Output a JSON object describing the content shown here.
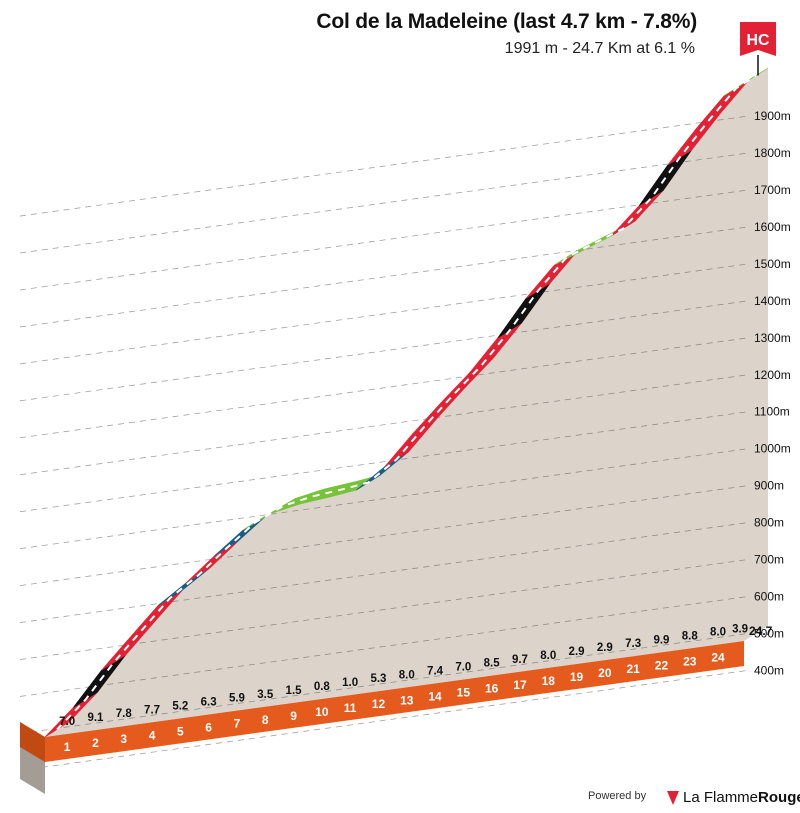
{
  "title": "Col de la Madeleine (last 4.7 km - 7.8%)",
  "subtitle": "1991 m - 24.7 Km at 6.1 %",
  "category_badge": "HC",
  "powered_by": "Powered by",
  "brand_name_light": "La Flamme",
  "brand_name_bold": "Rouge",
  "colors": {
    "ground": "#dcd3cb",
    "ground_side": "#a49d96",
    "base_orange": "#e55b1e",
    "badge_red": "#e22134",
    "grade_green": "#76c23a",
    "grade_blue": "#1b5d85",
    "grade_red": "#e22134",
    "grade_black": "#111111"
  },
  "chart_data": {
    "type": "area",
    "title": "Col de la Madeleine (last 4.7 km - 7.8%)",
    "subtitle": "1991 m - 24.7 Km at 6.1 %",
    "x_unit": "km",
    "y_unit": "m",
    "km_labels": [
      "1",
      "2",
      "3",
      "4",
      "5",
      "6",
      "7",
      "8",
      "9",
      "10",
      "11",
      "12",
      "13",
      "14",
      "15",
      "16",
      "17",
      "18",
      "19",
      "20",
      "21",
      "22",
      "23",
      "24"
    ],
    "end_km_label": "24.7",
    "gradients": [
      7.0,
      9.1,
      7.8,
      7.7,
      5.2,
      6.3,
      5.9,
      3.5,
      1.5,
      0.8,
      1.0,
      5.3,
      8.0,
      7.4,
      7.0,
      8.5,
      9.7,
      8.0,
      2.9,
      2.9,
      7.3,
      9.9,
      8.8,
      8.0,
      3.9
    ],
    "gradient_labels": [
      "7.0",
      "9.1",
      "7.8",
      "7.7",
      "5.2",
      "6.3",
      "5.9",
      "3.5",
      "1.5",
      "0.8",
      "1.0",
      "5.3",
      "8.0",
      "7.4",
      "7.0",
      "8.5",
      "9.7",
      "8.0",
      "2.9",
      "2.9",
      "7.3",
      "9.9",
      "8.8",
      "8.0",
      "3.9"
    ],
    "elevation_ticks": [
      "400m",
      "500m",
      "600m",
      "700m",
      "800m",
      "900m",
      "1000m",
      "1100m",
      "1200m",
      "1300m",
      "1400m",
      "1500m",
      "1600m",
      "1700m",
      "1800m",
      "1900m"
    ],
    "elevation_values": [
      400,
      500,
      600,
      700,
      800,
      900,
      1000,
      1100,
      1200,
      1300,
      1400,
      1500,
      1600,
      1700,
      1800,
      1900
    ],
    "start_elevation": 481,
    "summit_elevation": 1991,
    "grade_color_rule": "<4 green, 4-6 blue, 6-9 red, >=9 black"
  }
}
